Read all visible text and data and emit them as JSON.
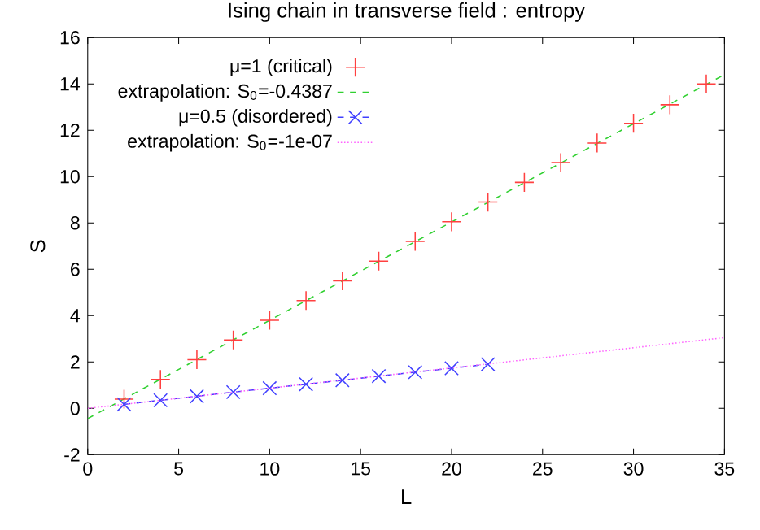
{
  "chart_data": {
    "type": "scatter",
    "title": "Ising chain in transverse field : entropy",
    "xlabel": "L",
    "ylabel": "S",
    "xlim": [
      0,
      35
    ],
    "ylim": [
      -2,
      16
    ],
    "xticks": [
      0,
      5,
      10,
      15,
      20,
      25,
      30,
      35
    ],
    "yticks": [
      -2,
      0,
      2,
      4,
      6,
      8,
      10,
      12,
      14,
      16
    ],
    "grid": false,
    "legend": "top left",
    "series": [
      {
        "name": "μ=1 (critical)",
        "marker": "cross",
        "color": "#ff4040",
        "x": [
          2,
          4,
          6,
          8,
          10,
          12,
          14,
          16,
          18,
          20,
          22,
          24,
          26,
          28,
          30,
          32,
          34
        ],
        "values": [
          0.4,
          1.25,
          2.1,
          2.95,
          3.8,
          4.65,
          5.5,
          6.35,
          7.2,
          8.05,
          8.9,
          9.75,
          10.6,
          11.45,
          12.3,
          13.1,
          14.0
        ]
      },
      {
        "name": "extrapolation: S$_{0}$=-0.4387",
        "type": "line",
        "line_style": "dashed",
        "color": "#30d030",
        "x": [
          0,
          35
        ],
        "values": [
          -0.44,
          14.4
        ]
      },
      {
        "name": "μ=0.5 (disordered)",
        "type": "line",
        "marker": "x",
        "line_style": "dashed",
        "color": "#4040ff",
        "x": [
          2,
          4,
          6,
          8,
          10,
          12,
          14,
          16,
          18,
          20,
          22
        ],
        "values": [
          0.17,
          0.35,
          0.52,
          0.7,
          0.87,
          1.04,
          1.21,
          1.39,
          1.56,
          1.73,
          1.9
        ]
      },
      {
        "name": "extrapolation: S$_{0}$=-1e-07",
        "type": "line",
        "line_style": "dotted",
        "color": "#ff60ff",
        "x": [
          0,
          35
        ],
        "values": [
          0,
          3.05
        ]
      }
    ]
  }
}
